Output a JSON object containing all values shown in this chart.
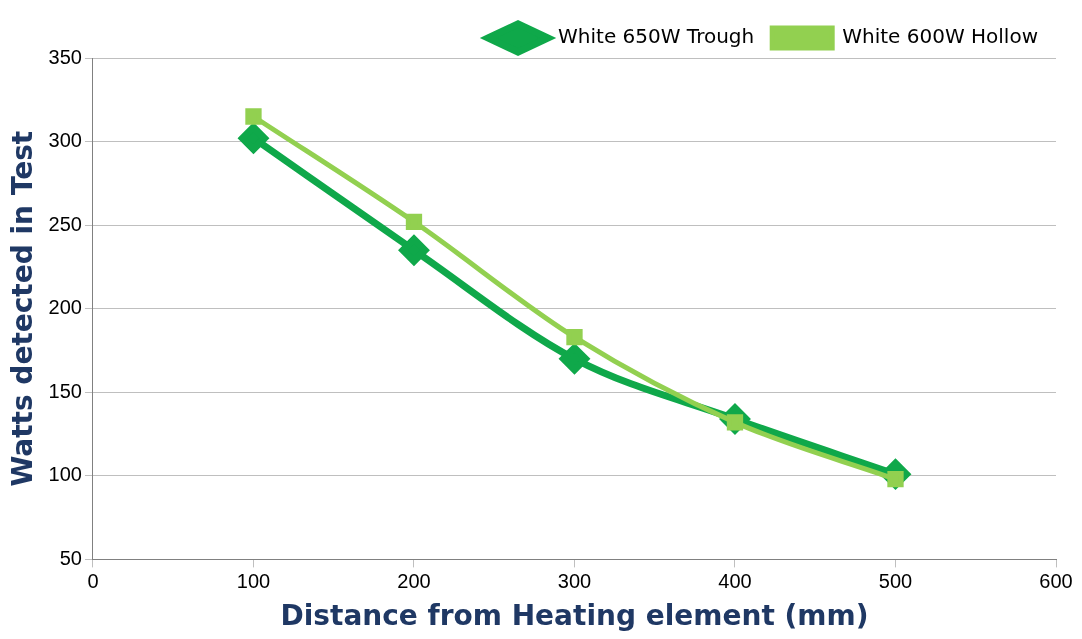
{
  "chart_data": {
    "type": "line",
    "xlabel": "Distance from Heating element (mm)",
    "ylabel": "Watts detected in Test",
    "x": [
      100,
      200,
      300,
      400,
      500
    ],
    "series": [
      {
        "name": "White 650W Trough",
        "color": "#0fa84a",
        "marker": "diamond",
        "values": [
          302,
          235,
          170,
          134,
          101
        ]
      },
      {
        "name": "White 600W Hollow",
        "color": "#92d050",
        "marker": "square",
        "values": [
          315,
          252,
          183,
          132,
          98
        ]
      }
    ],
    "xlim": [
      0,
      600
    ],
    "xticks": [
      0,
      100,
      200,
      300,
      400,
      500,
      600
    ],
    "ylim": [
      50,
      350
    ],
    "yticks": [
      50,
      100,
      150,
      200,
      250,
      300,
      350
    ],
    "grid": "y",
    "legend": "top right",
    "line_style": "solid"
  }
}
